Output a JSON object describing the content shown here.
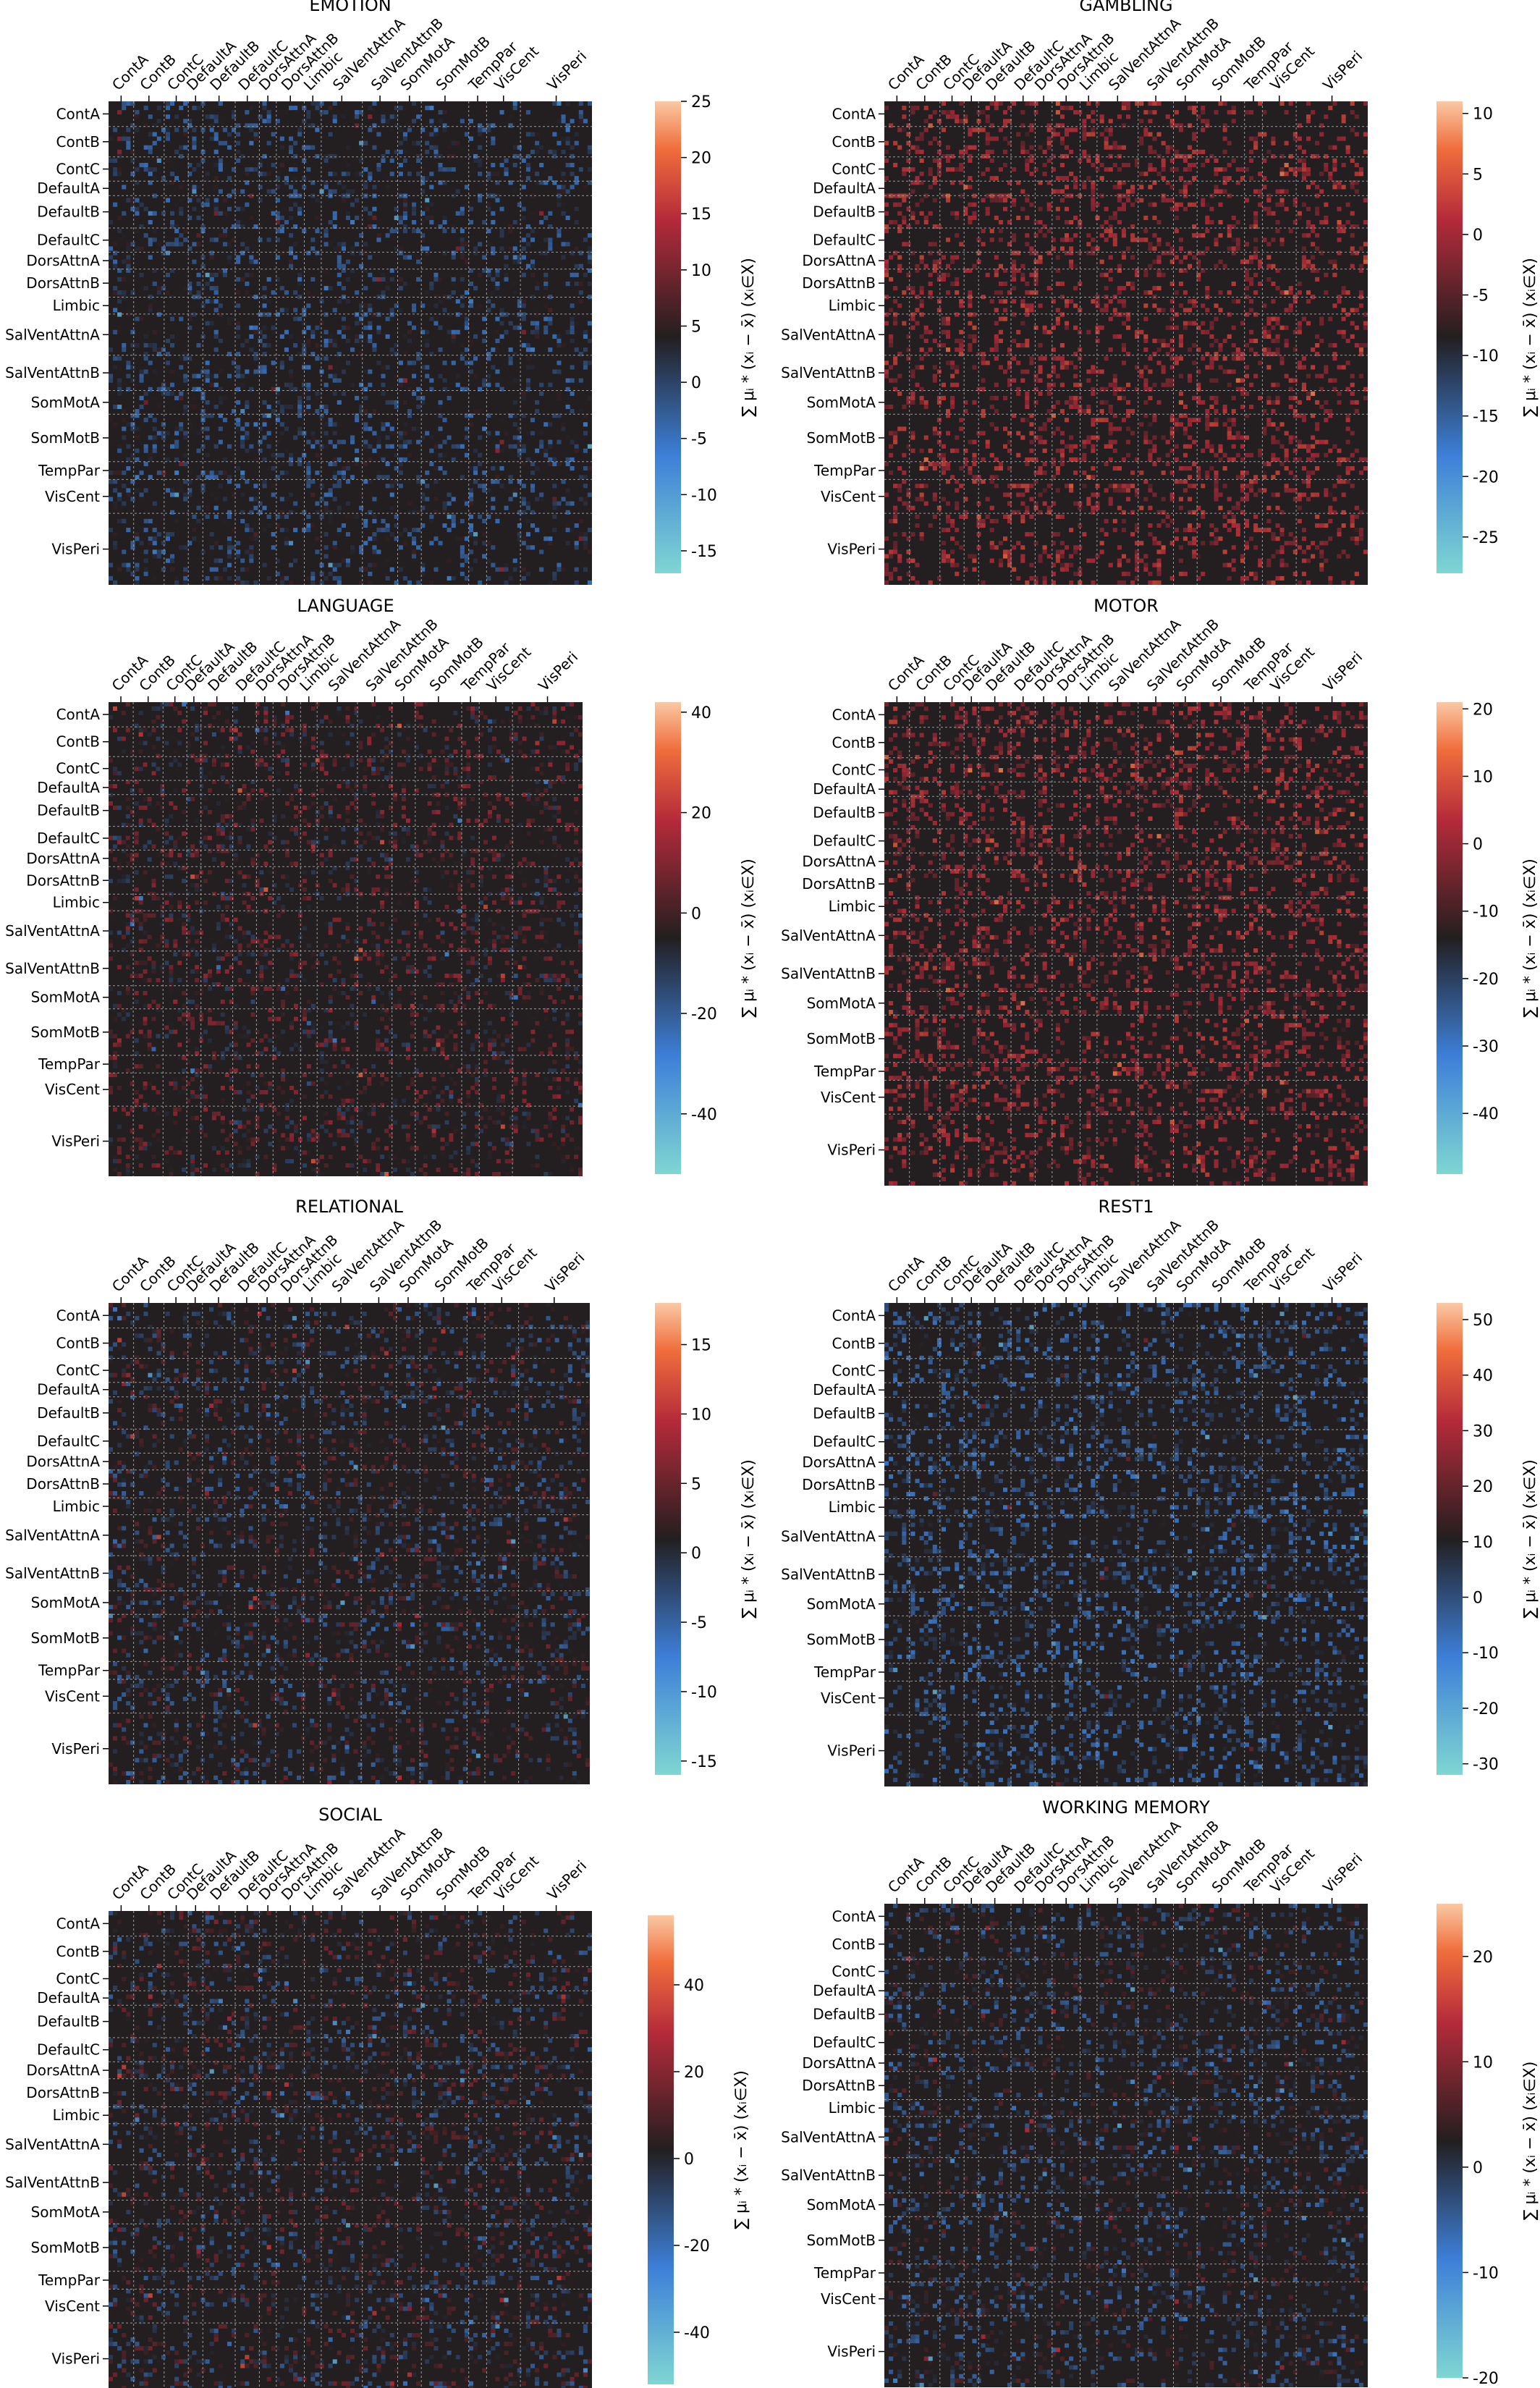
{
  "chart_data": [
    {
      "type": "heatmap",
      "title": "EMOTION",
      "cbar_ticks": [
        25,
        20,
        15,
        10,
        5,
        0,
        -5,
        -10,
        -15
      ],
      "vmin": -17,
      "vmax": 25,
      "colorbar_label": "∑ μᵢ * (xᵢ − x̄)   (xᵢ∈X)",
      "row_labels": [
        "ContA",
        "ContB",
        "ContC",
        "DefaultA",
        "DefaultB",
        "DefaultC",
        "DorsAttnA",
        "DorsAttnB",
        "Limbic",
        "SalVentAttnA",
        "SalVentAttnB",
        "SomMotA",
        "SomMotB",
        "TempPar",
        "VisCent",
        "VisPeri"
      ],
      "col_labels": [
        "ContA",
        "ContB",
        "ContC",
        "DefaultA",
        "DefaultB",
        "DefaultC",
        "DorsAttnA",
        "DorsAttnB",
        "Limbic",
        "SalVentAttnA",
        "SalVentAttnB",
        "SomMotA",
        "SomMotB",
        "TempPar",
        "VisCent",
        "VisPeri"
      ]
    },
    {
      "type": "heatmap",
      "title": "GAMBLING",
      "cbar_ticks": [
        10,
        5,
        0,
        -5,
        -10,
        -15,
        -20,
        -25
      ],
      "vmin": -28,
      "vmax": 11,
      "colorbar_label": "∑ μᵢ * (xᵢ − x̄)   (xᵢ∈X)",
      "row_labels": [
        "ContA",
        "ContB",
        "ContC",
        "DefaultA",
        "DefaultB",
        "DefaultC",
        "DorsAttnA",
        "DorsAttnB",
        "Limbic",
        "SalVentAttnA",
        "SalVentAttnB",
        "SomMotA",
        "SomMotB",
        "TempPar",
        "VisCent",
        "VisPeri"
      ],
      "col_labels": [
        "ContA",
        "ContB",
        "ContC",
        "DefaultA",
        "DefaultB",
        "DefaultC",
        "DorsAttnA",
        "DorsAttnB",
        "Limbic",
        "SalVentAttnA",
        "SalVentAttnB",
        "SomMotA",
        "SomMotB",
        "TempPar",
        "VisCent",
        "VisPeri"
      ]
    },
    {
      "type": "heatmap",
      "title": "LANGUAGE",
      "cbar_ticks": [
        40,
        20,
        0,
        -20,
        -40
      ],
      "vmin": -52,
      "vmax": 42,
      "colorbar_label": "∑ μᵢ * (xᵢ − x̄)   (xᵢ∈X)",
      "row_labels": [
        "ContA",
        "ContB",
        "ContC",
        "DefaultA",
        "DefaultB",
        "DefaultC",
        "DorsAttnA",
        "DorsAttnB",
        "Limbic",
        "SalVentAttnA",
        "SalVentAttnB",
        "SomMotA",
        "SomMotB",
        "TempPar",
        "VisCent",
        "VisPeri"
      ],
      "col_labels": [
        "ContA",
        "ContB",
        "ContC",
        "DefaultA",
        "DefaultB",
        "DefaultC",
        "DorsAttnA",
        "DorsAttnB",
        "Limbic",
        "SalVentAttnA",
        "SalVentAttnB",
        "SomMotA",
        "SomMotB",
        "TempPar",
        "VisCent",
        "VisPeri"
      ]
    },
    {
      "type": "heatmap",
      "title": "MOTOR",
      "cbar_ticks": [
        20,
        10,
        0,
        -10,
        -20,
        -30,
        -40
      ],
      "vmin": -49,
      "vmax": 21,
      "colorbar_label": "∑ μᵢ * (xᵢ − x̄)   (xᵢ∈X)",
      "row_labels": [
        "ContA",
        "ContB",
        "ContC",
        "DefaultA",
        "DefaultB",
        "DefaultC",
        "DorsAttnA",
        "DorsAttnB",
        "Limbic",
        "SalVentAttnA",
        "SalVentAttnB",
        "SomMotA",
        "SomMotB",
        "TempPar",
        "VisCent",
        "VisPeri"
      ],
      "col_labels": [
        "ContA",
        "ContB",
        "ContC",
        "DefaultA",
        "DefaultB",
        "DefaultC",
        "DorsAttnA",
        "DorsAttnB",
        "Limbic",
        "SalVentAttnA",
        "SalVentAttnB",
        "SomMotA",
        "SomMotB",
        "TempPar",
        "VisCent",
        "VisPeri"
      ]
    },
    {
      "type": "heatmap",
      "title": "RELATIONAL",
      "cbar_ticks": [
        15,
        10,
        5,
        0,
        -5,
        -10,
        -15
      ],
      "vmin": -16,
      "vmax": 18,
      "colorbar_label": "∑ μᵢ * (xᵢ − x̄)   (xᵢ∈X)",
      "row_labels": [
        "ContA",
        "ContB",
        "ContC",
        "DefaultA",
        "DefaultB",
        "DefaultC",
        "DorsAttnA",
        "DorsAttnB",
        "Limbic",
        "SalVentAttnA",
        "SalVentAttnB",
        "SomMotA",
        "SomMotB",
        "TempPar",
        "VisCent",
        "VisPeri"
      ],
      "col_labels": [
        "ContA",
        "ContB",
        "ContC",
        "DefaultA",
        "DefaultB",
        "DefaultC",
        "DorsAttnA",
        "DorsAttnB",
        "Limbic",
        "SalVentAttnA",
        "SalVentAttnB",
        "SomMotA",
        "SomMotB",
        "TempPar",
        "VisCent",
        "VisPeri"
      ]
    },
    {
      "type": "heatmap",
      "title": "REST1",
      "cbar_ticks": [
        50,
        40,
        30,
        20,
        10,
        0,
        -10,
        -20,
        -30
      ],
      "vmin": -32,
      "vmax": 53,
      "colorbar_label": "∑ μᵢ * (xᵢ − x̄)   (xᵢ∈X)",
      "row_labels": [
        "ContA",
        "ContB",
        "ContC",
        "DefaultA",
        "DefaultB",
        "DefaultC",
        "DorsAttnA",
        "DorsAttnB",
        "Limbic",
        "SalVentAttnA",
        "SalVentAttnB",
        "SomMotA",
        "SomMotB",
        "TempPar",
        "VisCent",
        "VisPeri"
      ],
      "col_labels": [
        "ContA",
        "ContB",
        "ContC",
        "DefaultA",
        "DefaultB",
        "DefaultC",
        "DorsAttnA",
        "DorsAttnB",
        "Limbic",
        "SalVentAttnA",
        "SalVentAttnB",
        "SomMotA",
        "SomMotB",
        "TempPar",
        "VisCent",
        "VisPeri"
      ]
    },
    {
      "type": "heatmap",
      "title": "SOCIAL",
      "cbar_ticks": [
        40,
        20,
        0,
        -20,
        -40
      ],
      "vmin": -52,
      "vmax": 56,
      "colorbar_label": "∑ μᵢ * (xᵢ − x̄)   (xᵢ∈X)",
      "row_labels": [
        "ContA",
        "ContB",
        "ContC",
        "DefaultA",
        "DefaultB",
        "DefaultC",
        "DorsAttnA",
        "DorsAttnB",
        "Limbic",
        "SalVentAttnA",
        "SalVentAttnB",
        "SomMotA",
        "SomMotB",
        "TempPar",
        "VisCent",
        "VisPeri"
      ],
      "col_labels": [
        "ContA",
        "ContB",
        "ContC",
        "DefaultA",
        "DefaultB",
        "DefaultC",
        "DorsAttnA",
        "DorsAttnB",
        "Limbic",
        "SalVentAttnA",
        "SalVentAttnB",
        "SomMotA",
        "SomMotB",
        "TempPar",
        "VisCent",
        "VisPeri"
      ]
    },
    {
      "type": "heatmap",
      "title": "WORKING MEMORY",
      "cbar_ticks": [
        20,
        10,
        0,
        -10,
        -20
      ],
      "vmin": -20,
      "vmax": 25,
      "colorbar_label": "∑ μᵢ * (xᵢ − x̄)   (xᵢ∈X)",
      "row_labels": [
        "ContA",
        "ContB",
        "ContC",
        "DefaultA",
        "DefaultB",
        "DefaultC",
        "DorsAttnA",
        "DorsAttnB",
        "Limbic",
        "SalVentAttnA",
        "SalVentAttnB",
        "SomMotA",
        "SomMotB",
        "TempPar",
        "VisCent",
        "VisPeri"
      ],
      "col_labels": [
        "ContA",
        "ContB",
        "ContC",
        "DefaultA",
        "DefaultB",
        "DefaultC",
        "DorsAttnA",
        "DorsAttnB",
        "Limbic",
        "SalVentAttnA",
        "SalVentAttnB",
        "SomMotA",
        "SomMotB",
        "TempPar",
        "VisCent",
        "VisPeri"
      ]
    }
  ],
  "colors": {
    "background": "#231f20",
    "grid": "#9a9a9a",
    "low": "#7fd6d2",
    "mid_low": "#3d7fd8",
    "center": "#231f20",
    "mid_high": "#b52a3a",
    "high": "#f9c9a4"
  }
}
